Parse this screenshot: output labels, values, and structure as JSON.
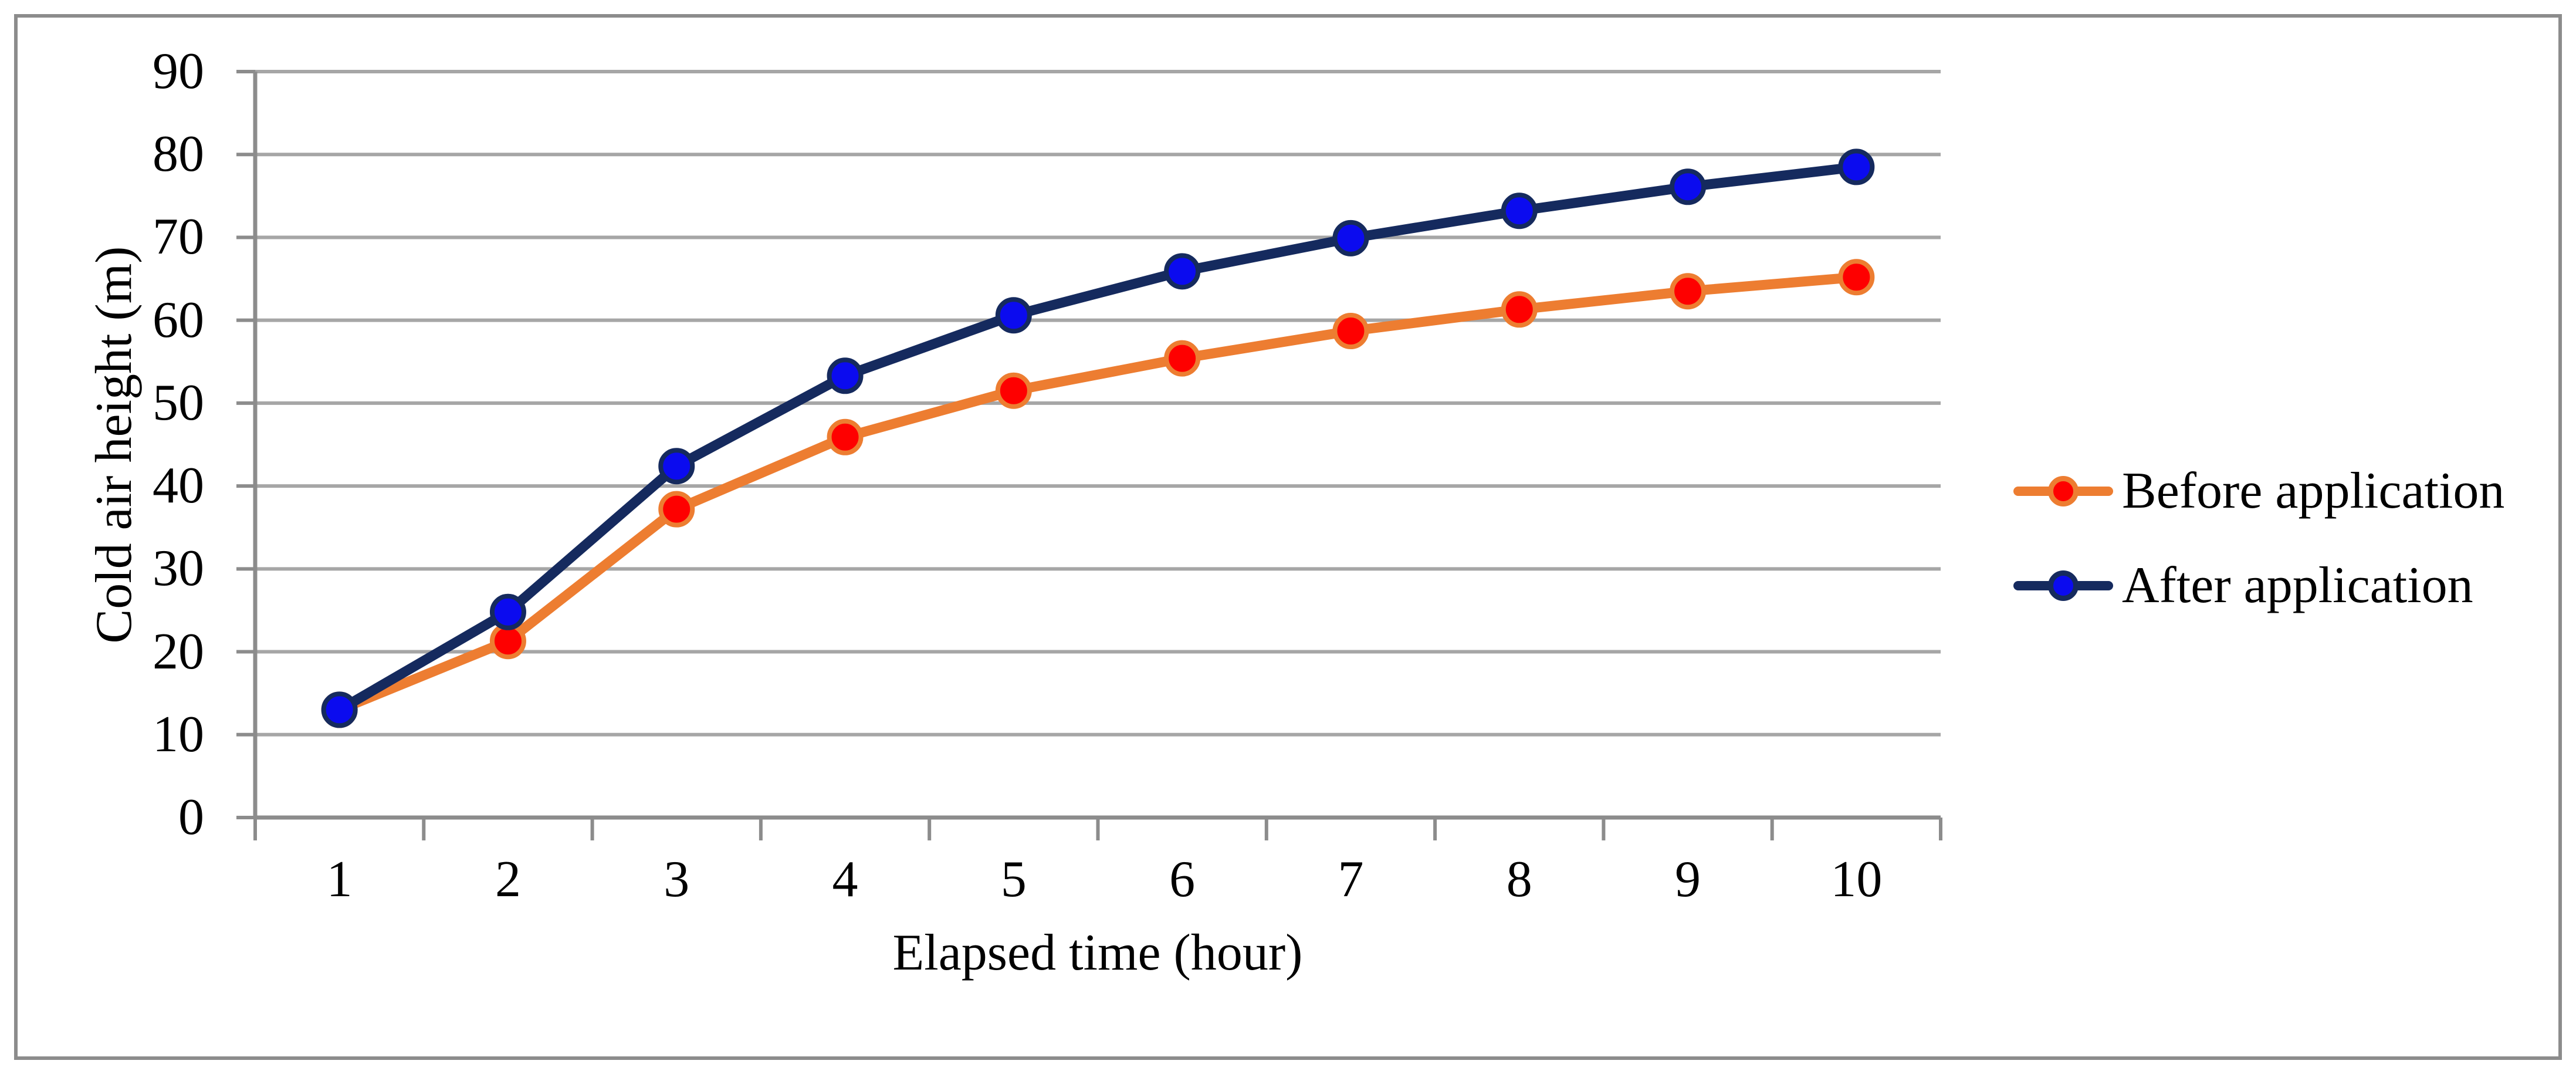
{
  "chart_data": {
    "type": "line",
    "title": "",
    "xlabel": "Elapsed time (hour)",
    "ylabel": "Cold air height (m)",
    "categories": [
      1,
      2,
      3,
      4,
      5,
      6,
      7,
      8,
      9,
      10
    ],
    "series": [
      {
        "name": "Before application",
        "line_color": "#ED7D31",
        "marker_fill": "#FE0000",
        "marker_stroke": "#ED7D31",
        "values": [
          13.0,
          21.3,
          37.2,
          45.9,
          51.5,
          55.4,
          58.7,
          61.3,
          63.5,
          65.2
        ]
      },
      {
        "name": "After application",
        "line_color": "#152A5E",
        "marker_fill": "#0B0BEF",
        "marker_stroke": "#152A5E",
        "values": [
          13.0,
          24.8,
          42.4,
          53.3,
          60.6,
          65.9,
          69.9,
          73.2,
          76.1,
          78.5
        ]
      }
    ],
    "ylim": [
      0,
      90
    ],
    "ytick_step": 10,
    "grid": "horizontal",
    "legend_position": "right",
    "grid_color": "#A6A6A6",
    "axis_color": "#8C8C8C",
    "border_color": "#8C8C8C",
    "background": "#FFFFFF"
  }
}
